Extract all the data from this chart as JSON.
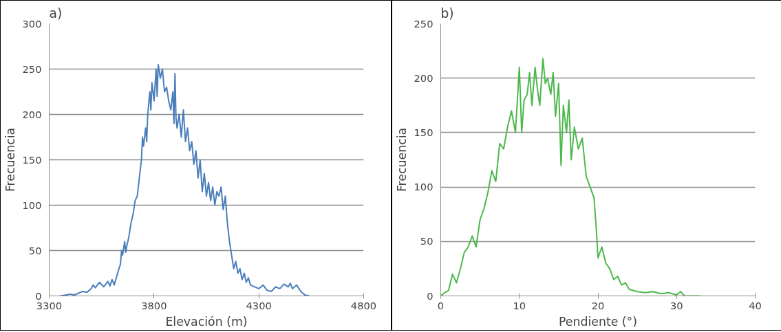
{
  "chart_data": [
    {
      "type": "line",
      "title": "a)",
      "xlabel": "Elevación (m)",
      "ylabel": "Frecuencia",
      "xlim": [
        3300,
        4800
      ],
      "xticks": [
        3300,
        3800,
        4300,
        4800
      ],
      "ylim": [
        0,
        300
      ],
      "yticks": [
        0,
        50,
        100,
        150,
        200,
        250,
        300
      ],
      "grid": "y",
      "x": [
        3350,
        3380,
        3400,
        3420,
        3440,
        3460,
        3480,
        3500,
        3510,
        3520,
        3540,
        3560,
        3580,
        3590,
        3600,
        3610,
        3620,
        3630,
        3640,
        3645,
        3650,
        3660,
        3665,
        3670,
        3680,
        3690,
        3700,
        3710,
        3720,
        3730,
        3740,
        3745,
        3750,
        3760,
        3765,
        3770,
        3780,
        3785,
        3790,
        3800,
        3810,
        3815,
        3820,
        3830,
        3840,
        3850,
        3860,
        3870,
        3880,
        3890,
        3895,
        3900,
        3905,
        3910,
        3920,
        3930,
        3940,
        3950,
        3960,
        3970,
        3980,
        3990,
        4000,
        4010,
        4020,
        4030,
        4040,
        4050,
        4060,
        4070,
        4080,
        4090,
        4100,
        4110,
        4120,
        4130,
        4140,
        4150,
        4160,
        4170,
        4180,
        4190,
        4200,
        4210,
        4220,
        4230,
        4240,
        4250,
        4260,
        4280,
        4300,
        4320,
        4340,
        4360,
        4380,
        4400,
        4420,
        4440,
        4450,
        4460,
        4480,
        4500,
        4520,
        4540
      ],
      "series": [
        {
          "color": "#4a7ebb",
          "values": [
            0,
            1,
            2,
            1,
            3,
            5,
            4,
            8,
            12,
            9,
            15,
            10,
            16,
            11,
            18,
            12,
            20,
            28,
            35,
            50,
            45,
            60,
            48,
            55,
            65,
            80,
            90,
            105,
            110,
            130,
            150,
            175,
            165,
            185,
            170,
            200,
            225,
            205,
            235,
            215,
            250,
            220,
            255,
            240,
            250,
            225,
            230,
            215,
            205,
            225,
            190,
            245,
            195,
            185,
            200,
            175,
            205,
            170,
            185,
            160,
            170,
            145,
            160,
            130,
            150,
            115,
            135,
            110,
            125,
            105,
            120,
            100,
            115,
            110,
            120,
            95,
            110,
            80,
            60,
            45,
            30,
            38,
            25,
            30,
            18,
            25,
            15,
            20,
            12,
            10,
            8,
            12,
            6,
            5,
            10,
            8,
            13,
            10,
            14,
            8,
            12,
            5,
            1,
            0
          ]
        }
      ]
    },
    {
      "type": "line",
      "title": "b)",
      "xlabel": "Pendiente (°)",
      "ylabel": "Frecuencia",
      "xlim": [
        0,
        40
      ],
      "xticks": [
        0,
        10,
        20,
        30,
        40
      ],
      "ylim": [
        0,
        250
      ],
      "yticks": [
        0,
        50,
        100,
        150,
        200,
        250
      ],
      "grid": "y",
      "x": [
        0,
        0.5,
        1,
        1.5,
        2,
        2.5,
        3,
        3.5,
        4,
        4.5,
        5,
        5.5,
        6,
        6.5,
        7,
        7.5,
        8,
        8.5,
        9,
        9.5,
        10,
        10.3,
        10.6,
        11,
        11.3,
        11.6,
        12,
        12.3,
        12.6,
        13,
        13.3,
        13.6,
        14,
        14.3,
        14.6,
        15,
        15.3,
        15.6,
        16,
        16.3,
        16.6,
        17,
        17.5,
        18,
        18.5,
        19,
        19.5,
        19.8,
        20,
        20.5,
        21,
        21.5,
        22,
        22.5,
        23,
        23.5,
        24,
        25,
        26,
        27,
        28,
        29,
        30,
        30.5,
        31,
        32,
        33
      ],
      "series": [
        {
          "color": "#4cb84c",
          "values": [
            0,
            3,
            5,
            20,
            12,
            25,
            40,
            45,
            55,
            45,
            70,
            80,
            95,
            115,
            105,
            140,
            135,
            155,
            170,
            150,
            210,
            150,
            180,
            185,
            205,
            175,
            210,
            190,
            175,
            218,
            195,
            200,
            185,
            205,
            165,
            195,
            120,
            175,
            150,
            180,
            125,
            155,
            135,
            145,
            110,
            100,
            90,
            60,
            35,
            45,
            30,
            25,
            15,
            18,
            10,
            12,
            6,
            4,
            3,
            4,
            2,
            3,
            1,
            4,
            0,
            0,
            0
          ]
        }
      ]
    }
  ]
}
